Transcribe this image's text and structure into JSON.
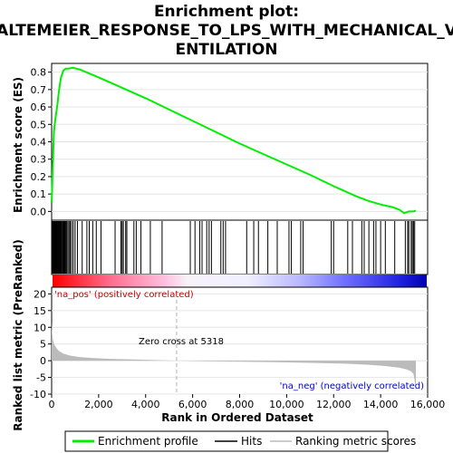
{
  "title_lines": [
    "Enrichment plot:",
    "ALTEMEIER_RESPONSE_TO_LPS_WITH_MECHANICAL_V",
    "ENTILATION"
  ],
  "colors": {
    "es_line": "#00ee00",
    "hits": "#000000",
    "metric": "#bbbbbb",
    "pos_label": "#cc0000",
    "neg_label": "#0000cc",
    "zero_line": "#b0b0b0"
  },
  "legend": {
    "enrichment": "Enrichment profile",
    "hits": "Hits",
    "metric": "Ranking metric scores"
  },
  "chart_data": [
    {
      "type": "line",
      "name": "enrichment-profile",
      "ylabel": "Enrichment score (ES)",
      "xlim": [
        0,
        16000
      ],
      "ylim": [
        -0.05,
        0.85
      ],
      "yticks": [
        0.0,
        0.1,
        0.2,
        0.3,
        0.4,
        0.5,
        0.6,
        0.7,
        0.8
      ],
      "ytick_labels": [
        "0.0",
        "0.1",
        "0.2",
        "0.3",
        "0.4",
        "0.5",
        "0.6",
        "0.7",
        "0.8"
      ],
      "series": [
        {
          "x": [
            0,
            20,
            40,
            60,
            80,
            100,
            130,
            160,
            200,
            250,
            300,
            350,
            400,
            450,
            500,
            600,
            700,
            900,
            1200,
            2000,
            3000,
            4000,
            5000,
            6000,
            7000,
            8000,
            9000,
            10000,
            11000,
            12000,
            13000,
            13500,
            14000,
            14500,
            14800,
            15000,
            15200,
            15400,
            15500
          ],
          "y": [
            0.05,
            0.12,
            0.22,
            0.3,
            0.4,
            0.46,
            0.5,
            0.53,
            0.57,
            0.62,
            0.68,
            0.73,
            0.77,
            0.79,
            0.81,
            0.82,
            0.82,
            0.825,
            0.815,
            0.77,
            0.71,
            0.65,
            0.585,
            0.52,
            0.455,
            0.39,
            0.33,
            0.27,
            0.21,
            0.145,
            0.085,
            0.06,
            0.04,
            0.025,
            0.01,
            -0.01,
            0.0,
            0.0,
            0.005
          ]
        }
      ]
    },
    {
      "type": "scatter",
      "name": "hits",
      "ylabel": "",
      "xlim": [
        0,
        16000
      ],
      "x": [
        10,
        30,
        50,
        70,
        90,
        110,
        130,
        150,
        170,
        190,
        210,
        230,
        260,
        290,
        320,
        350,
        380,
        410,
        440,
        480,
        520,
        560,
        600,
        640,
        690,
        740,
        790,
        850,
        920,
        1000,
        1100,
        1300,
        1500,
        1600,
        1750,
        1900,
        2100,
        2700,
        2950,
        3000,
        3050,
        3150,
        3200,
        3500,
        3600,
        3800,
        4200,
        4700,
        5900,
        6100,
        6300,
        6400,
        6600,
        6700,
        6800,
        7200,
        7300,
        7400,
        8300,
        8600,
        8800,
        9200,
        9600,
        10100,
        10200,
        10600,
        10700,
        11900,
        12000,
        12600,
        12800,
        13200,
        13300,
        13500,
        13700,
        13800,
        14000,
        14200,
        14600,
        15050,
        15150,
        15200,
        15300,
        15350,
        15400,
        15450
      ]
    },
    {
      "type": "area",
      "name": "ranked-list-metric",
      "ylabel": "Ranked list metric (PreRanked)",
      "xlabel": "Rank in Ordered Dataset",
      "xlim": [
        0,
        16000
      ],
      "ylim": [
        -10,
        22
      ],
      "yticks": [
        -10,
        -5,
        0,
        5,
        10,
        15,
        20
      ],
      "ytick_labels": [
        "-10",
        "-5",
        "0",
        "5",
        "10",
        "15",
        "20"
      ],
      "xticks": [
        0,
        2000,
        4000,
        6000,
        8000,
        10000,
        12000,
        14000,
        16000
      ],
      "xtick_labels": [
        "0",
        "2,000",
        "4,000",
        "6,000",
        "8,000",
        "10,000",
        "12,000",
        "14,000",
        "16,000"
      ],
      "series": [
        {
          "x": [
            0,
            20,
            50,
            100,
            200,
            300,
            500,
            800,
            1200,
            1800,
            2500,
            3500,
            4500,
            5318,
            6500,
            8000,
            9500,
            11000,
            12500,
            13500,
            14200,
            14800,
            15100,
            15300,
            15400,
            15450,
            15500
          ],
          "y": [
            11.5,
            8.5,
            6.5,
            5.0,
            3.8,
            3.0,
            2.1,
            1.5,
            1.1,
            0.8,
            0.55,
            0.35,
            0.18,
            0.0,
            -0.15,
            -0.3,
            -0.45,
            -0.65,
            -0.9,
            -1.2,
            -1.6,
            -2.1,
            -2.6,
            -3.2,
            -4.0,
            -6.0,
            -9.0
          ]
        }
      ],
      "annotations": {
        "pos_label": "'na_pos' (positively correlated)",
        "neg_label": "'na_neg' (negatively correlated)",
        "zero_cross": "Zero cross at 5318",
        "zero_cross_x": 5318
      }
    }
  ]
}
